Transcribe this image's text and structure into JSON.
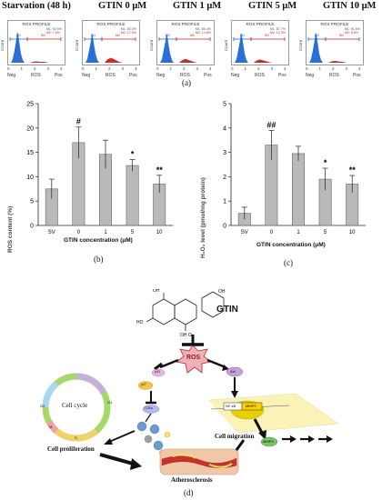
{
  "flow_panel": {
    "headers": [
      "Starvation (48 h)",
      "GTIN 0 μM",
      "GTIN 1 μM",
      "GTIN 5 μM",
      "GTIN 10 μM"
    ],
    "plot_title": "ROS PROFILE",
    "y_axis_label": "Count",
    "x_axis_label": "ROS",
    "x_tick_neg": "Neg",
    "x_tick_pos": "Pos",
    "x_ticks": [
      "0",
      "1",
      "2",
      "3",
      "4"
    ],
    "marker_m1": "M1",
    "marker_m2": "M2",
    "legends": [
      {
        "m1": "M1: 92.5%",
        "m2": "M2: 7.5%"
      },
      {
        "m1": "M1: 83.0%",
        "m2": "M2: 17.0%"
      },
      {
        "m1": "M1: 85.4%",
        "m2": "M2: 14.6%"
      },
      {
        "m1": "M1: 87.7%",
        "m2": "M2: 12.3%"
      },
      {
        "m1": "M1: 91.5%",
        "m2": "M2: 8.5%"
      }
    ],
    "letter": "(a)"
  },
  "chart_data": [
    {
      "type": "bar",
      "ylabel": "ROS content (%)",
      "xlabel": "GTIN concentration (μM)",
      "categories": [
        "SV",
        "0",
        "1",
        "5",
        "10"
      ],
      "values": [
        7.5,
        17,
        14.6,
        12.3,
        8.5
      ],
      "errors": [
        2.0,
        3.2,
        2.9,
        1.2,
        1.8
      ],
      "annotations": [
        "",
        "#",
        "",
        "*",
        "**"
      ],
      "ylim": [
        0,
        25
      ],
      "yticks": [
        "0",
        "5",
        "10",
        "15",
        "20",
        "25"
      ],
      "letter": "(b)"
    },
    {
      "type": "bar",
      "ylabel": "H₂O₂ level (pmol/mg protein)",
      "xlabel": "GTIN concentration (μM)",
      "categories": [
        "SV",
        "0",
        "1",
        "5",
        "10"
      ],
      "values": [
        0.5,
        3.3,
        2.95,
        1.9,
        1.7
      ],
      "errors": [
        0.25,
        0.6,
        0.3,
        0.45,
        0.35
      ],
      "annotations": [
        "",
        "##",
        "",
        "*",
        "**"
      ],
      "ylim": [
        0,
        5
      ],
      "yticks": [
        "0",
        "1",
        "2",
        "3",
        "4",
        "5"
      ],
      "letter": "(c)"
    }
  ],
  "diagram": {
    "compound": "GTIN",
    "ros": "ROS",
    "akt": "Akt",
    "nfkb": "NF-κB",
    "mmp9": "MMP9",
    "mmp9_secreted": "MMP9",
    "p53": "p53",
    "p27": "p27",
    "cdk": "CDKs",
    "cell_cycle": "Cell cycle",
    "phases": [
      "G1",
      "S",
      "G2",
      "M"
    ],
    "cell_proliferation": "Cell proliferation",
    "cell_migration": "Cell migration",
    "atherosclerosis": "Atherosclerosis",
    "letter": "(d)"
  }
}
